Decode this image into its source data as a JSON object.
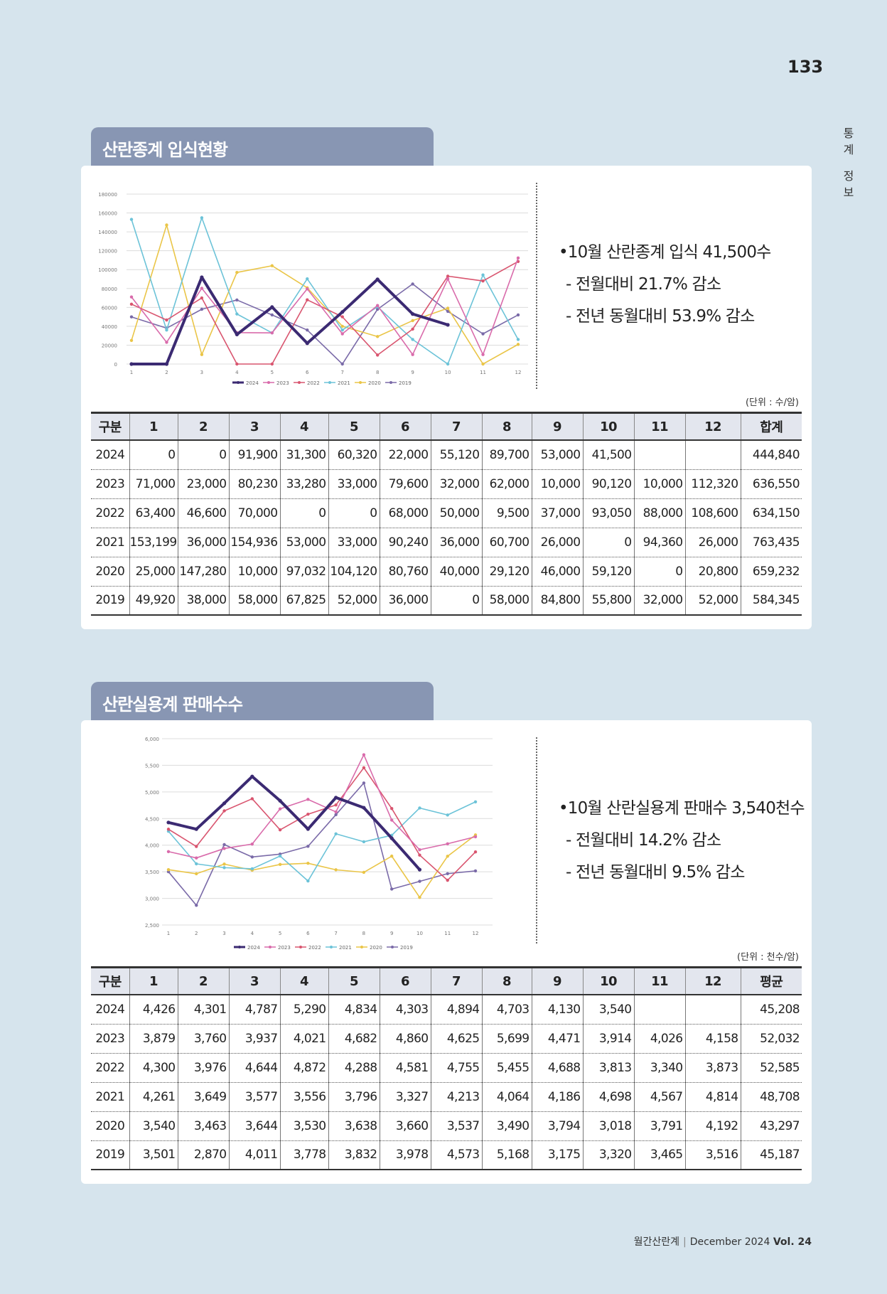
{
  "page": {
    "number": "133",
    "side_label": [
      "통",
      "계",
      "정",
      "보"
    ]
  },
  "footer": {
    "magazine": "월간산란계",
    "issue": "December 2024",
    "vol": "Vol. 24"
  },
  "section1": {
    "title": "산란종계 입식현황",
    "bullets": {
      "main": "•10월 산란종계 입식 41,500수",
      "sub1": "- 전월대비 21.7% 감소",
      "sub2": "- 전년 동월대비 53.9% 감소"
    },
    "unit": "(단위 : 수/암)",
    "table": {
      "headers": [
        "구분",
        "1",
        "2",
        "3",
        "4",
        "5",
        "6",
        "7",
        "8",
        "9",
        "10",
        "11",
        "12",
        "합계"
      ],
      "rows": [
        [
          "2024",
          "0",
          "0",
          "91,900",
          "31,300",
          "60,320",
          "22,000",
          "55,120",
          "89,700",
          "53,000",
          "41,500",
          "",
          "",
          "444,840"
        ],
        [
          "2023",
          "71,000",
          "23,000",
          "80,230",
          "33,280",
          "33,000",
          "79,600",
          "32,000",
          "62,000",
          "10,000",
          "90,120",
          "10,000",
          "112,320",
          "636,550"
        ],
        [
          "2022",
          "63,400",
          "46,600",
          "70,000",
          "0",
          "0",
          "68,000",
          "50,000",
          "9,500",
          "37,000",
          "93,050",
          "88,000",
          "108,600",
          "634,150"
        ],
        [
          "2021",
          "153,199",
          "36,000",
          "154,936",
          "53,000",
          "33,000",
          "90,240",
          "36,000",
          "60,700",
          "26,000",
          "0",
          "94,360",
          "26,000",
          "763,435"
        ],
        [
          "2020",
          "25,000",
          "147,280",
          "10,000",
          "97,032",
          "104,120",
          "80,760",
          "40,000",
          "29,120",
          "46,000",
          "59,120",
          "0",
          "20,800",
          "659,232"
        ],
        [
          "2019",
          "49,920",
          "38,000",
          "58,000",
          "67,825",
          "52,000",
          "36,000",
          "0",
          "58,000",
          "84,800",
          "55,800",
          "32,000",
          "52,000",
          "584,345"
        ]
      ]
    }
  },
  "section2": {
    "title": "산란실용계 판매수수",
    "bullets": {
      "main": "•10월 산란실용계 판매수 3,540천수",
      "sub1": "- 전월대비 14.2% 감소",
      "sub2": "- 전년 동월대비 9.5% 감소"
    },
    "unit": "(단위 : 천수/암)",
    "table": {
      "headers": [
        "구분",
        "1",
        "2",
        "3",
        "4",
        "5",
        "6",
        "7",
        "8",
        "9",
        "10",
        "11",
        "12",
        "평균"
      ],
      "rows": [
        [
          "2024",
          "4,426",
          "4,301",
          "4,787",
          "5,290",
          "4,834",
          "4,303",
          "4,894",
          "4,703",
          "4,130",
          "3,540",
          "",
          "",
          "45,208"
        ],
        [
          "2023",
          "3,879",
          "3,760",
          "3,937",
          "4,021",
          "4,682",
          "4,860",
          "4,625",
          "5,699",
          "4,471",
          "3,914",
          "4,026",
          "4,158",
          "52,032"
        ],
        [
          "2022",
          "4,300",
          "3,976",
          "4,644",
          "4,872",
          "4,288",
          "4,581",
          "4,755",
          "5,455",
          "4,688",
          "3,813",
          "3,340",
          "3,873",
          "52,585"
        ],
        [
          "2021",
          "4,261",
          "3,649",
          "3,577",
          "3,556",
          "3,796",
          "3,327",
          "4,213",
          "4,064",
          "4,186",
          "4,698",
          "4,567",
          "4,814",
          "48,708"
        ],
        [
          "2020",
          "3,540",
          "3,463",
          "3,644",
          "3,530",
          "3,638",
          "3,660",
          "3,537",
          "3,490",
          "3,794",
          "3,018",
          "3,791",
          "4,192",
          "43,297"
        ],
        [
          "2019",
          "3,501",
          "2,870",
          "4,011",
          "3,778",
          "3,832",
          "3,978",
          "4,573",
          "5,168",
          "3,175",
          "3,320",
          "3,465",
          "3,516",
          "45,187"
        ]
      ]
    }
  },
  "chart_data": [
    {
      "type": "line",
      "title": "",
      "x": [
        1,
        2,
        3,
        4,
        5,
        6,
        7,
        8,
        9,
        10,
        11,
        12
      ],
      "x_tick_labels": [
        "1",
        "2",
        "3",
        "4",
        "5",
        "6",
        "7",
        "8",
        "9",
        "10",
        "11",
        "12"
      ],
      "y_tick_labels": [
        "180000",
        "160000",
        "140000",
        "120000",
        "100000",
        "80000",
        "60000",
        "40000",
        "20000",
        "0"
      ],
      "ylim": [
        0,
        180000
      ],
      "yticks": [
        0,
        20000,
        40000,
        60000,
        80000,
        100000,
        120000,
        140000,
        160000,
        180000
      ],
      "grid": true,
      "legend": "bottom",
      "series": [
        {
          "name": "2024",
          "color": "#3b2a72",
          "values": [
            0,
            0,
            91900,
            31300,
            60320,
            22000,
            55120,
            89700,
            53000,
            41500,
            null,
            null
          ]
        },
        {
          "name": "2023",
          "color": "#d96bab",
          "values": [
            71000,
            23000,
            80230,
            33280,
            33000,
            79600,
            32000,
            62000,
            10000,
            90120,
            10000,
            112320
          ]
        },
        {
          "name": "2022",
          "color": "#d9556f",
          "values": [
            63400,
            46600,
            70000,
            0,
            0,
            68000,
            50000,
            9500,
            37000,
            93050,
            88000,
            108600
          ]
        },
        {
          "name": "2021",
          "color": "#6cc3d8",
          "values": [
            153199,
            36000,
            154936,
            53000,
            33000,
            90240,
            36000,
            60700,
            26000,
            0,
            94360,
            26000
          ]
        },
        {
          "name": "2020",
          "color": "#eac547",
          "values": [
            25000,
            147280,
            10000,
            97032,
            104120,
            80760,
            40000,
            29120,
            46000,
            59120,
            0,
            20800
          ]
        },
        {
          "name": "2019",
          "color": "#7a6aa8",
          "values": [
            49920,
            38000,
            58000,
            67825,
            52000,
            36000,
            0,
            58000,
            84800,
            55800,
            32000,
            52000
          ]
        }
      ]
    },
    {
      "type": "line",
      "title": "",
      "x": [
        1,
        2,
        3,
        4,
        5,
        6,
        7,
        8,
        9,
        10,
        11,
        12
      ],
      "x_tick_labels": [
        "1",
        "2",
        "3",
        "4",
        "5",
        "6",
        "7",
        "8",
        "9",
        "10",
        "11",
        "12"
      ],
      "y_tick_labels": [
        "6,000",
        "5,500",
        "5,000",
        "4,500",
        "4,000",
        "3,500",
        "3,000",
        "2,500"
      ],
      "ylim": [
        2500,
        6000
      ],
      "yticks": [
        2500,
        3000,
        3500,
        4000,
        4500,
        5000,
        5500,
        6000
      ],
      "grid": true,
      "legend": "bottom",
      "series": [
        {
          "name": "2024",
          "color": "#3b2a72",
          "values": [
            4426,
            4301,
            4787,
            5290,
            4834,
            4303,
            4894,
            4703,
            4130,
            3540,
            null,
            null
          ]
        },
        {
          "name": "2023",
          "color": "#d96bab",
          "values": [
            3879,
            3760,
            3937,
            4021,
            4682,
            4860,
            4625,
            5699,
            4471,
            3914,
            4026,
            4158
          ]
        },
        {
          "name": "2022",
          "color": "#d9556f",
          "values": [
            4300,
            3976,
            4644,
            4872,
            4288,
            4581,
            4755,
            5455,
            4688,
            3813,
            3340,
            3873
          ]
        },
        {
          "name": "2021",
          "color": "#6cc3d8",
          "values": [
            4261,
            3649,
            3577,
            3556,
            3796,
            3327,
            4213,
            4064,
            4186,
            4698,
            4567,
            4814
          ]
        },
        {
          "name": "2020",
          "color": "#eac547",
          "values": [
            3540,
            3463,
            3644,
            3530,
            3638,
            3660,
            3537,
            3490,
            3794,
            3018,
            3791,
            4192
          ]
        },
        {
          "name": "2019",
          "color": "#7a6aa8",
          "values": [
            3501,
            2870,
            4011,
            3778,
            3832,
            3978,
            4573,
            5168,
            3175,
            3320,
            3465,
            3516
          ]
        }
      ]
    }
  ]
}
